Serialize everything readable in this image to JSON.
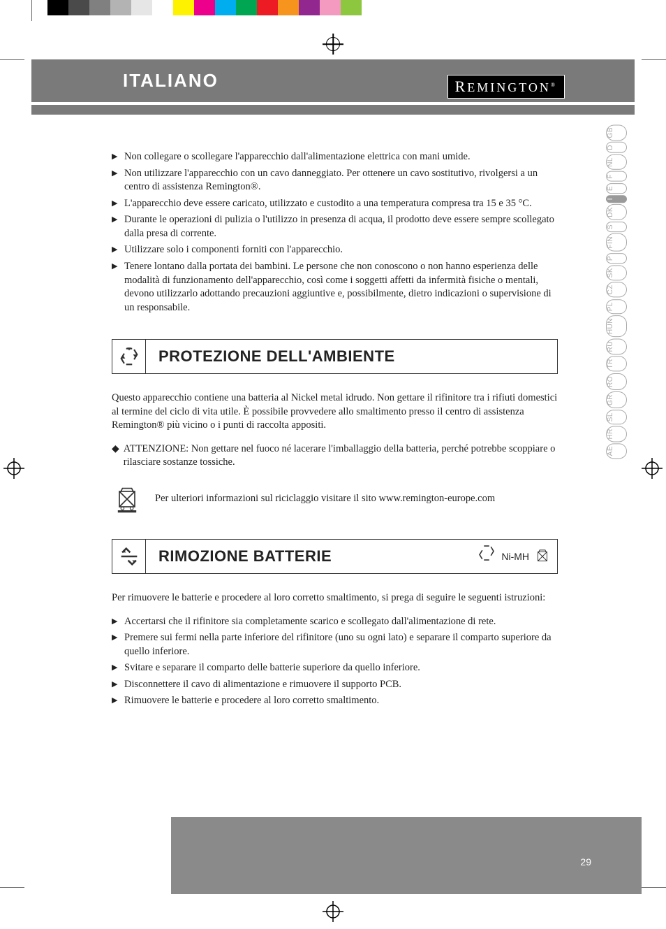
{
  "header": {
    "language_title": "ITALIANO",
    "brand_name": "REMINGTON"
  },
  "color_bar": [
    "#000000",
    "#4a4a4a",
    "#808080",
    "#b3b3b3",
    "#e6e6e6",
    "#ffffff",
    "#fff200",
    "#ec008c",
    "#00aeef",
    "#00a651",
    "#ed1c24",
    "#f7941d",
    "#92278f",
    "#f49ac1",
    "#8dc63f",
    "#ffffff"
  ],
  "safety_bullets": [
    "Non collegare o scollegare l'apparecchio dall'alimentazione elettrica con mani umide.",
    "Non utilizzare l'apparecchio con un cavo danneggiato. Per ottenere un cavo sostitutivo, rivolgersi a un centro di assistenza Remington®.",
    "L'apparecchio deve essere caricato, utilizzato e custodito a una temperatura compresa tra 15 e 35 °C.",
    "Durante le operazioni di pulizia o l'utilizzo in presenza di acqua, il prodotto deve essere sempre scollegato dalla presa di corrente.",
    "Utilizzare solo i componenti forniti con l'apparecchio.",
    "Tenere lontano dalla portata dei bambini. Le persone che non conoscono o non hanno esperienza delle modalità di funzionamento dell'apparecchio, così come i soggetti affetti da infermità fisiche o mentali, devono utilizzarlo adottando precauzioni aggiuntive e, possibilmente, dietro indicazioni o supervisione di un responsabile."
  ],
  "environment": {
    "title": "PROTEZIONE DELL'AMBIENTE",
    "paragraph": "Questo apparecchio contiene una batteria al Nickel metal idrudo. Non gettare il rifinitore tra i rifiuti domestici al termine del ciclo di vita utile. È possibile provvedere allo smaltimento presso il centro di assistenza Remington® più vicino o i punti di raccolta appositi.",
    "caution": "ATTENZIONE: Non gettare nel fuoco né lacerare l'imballaggio della batteria, perché potrebbe scoppiare o rilasciare sostanze tossiche.",
    "info_text": "Per ulteriori informazioni sul riciclaggio visitare il sito www.remington-europe.com"
  },
  "battery": {
    "title": "RIMOZIONE BATTERIE",
    "badge": "Ni-MH",
    "intro": "Per rimuovere le batterie e procedere al loro corretto smaltimento, si prega di seguire le seguenti istruzioni:",
    "steps": [
      "Accertarsi che il rifinitore sia completamente scarico e scollegato dall'alimentazione di rete.",
      "Premere sui fermi nella parte inferiore del rifinitore (uno su ogni lato) e separare il comparto superiore da quello inferiore.",
      "Svitare e separare il comparto delle batterie superiore da quello inferiore.",
      "Disconnettere il cavo di alimentazione e rimuovere il supporto PCB.",
      "Rimuovere le batterie e procedere al loro corretto smaltimento."
    ]
  },
  "language_tabs": [
    "GB",
    "D",
    "NL",
    "F",
    "E",
    "I",
    "DK",
    "S",
    "FIN",
    "P",
    "SK",
    "CZ",
    "PL",
    "HUN",
    "RU",
    "TR",
    "RO",
    "GR",
    "SL",
    "HR",
    "AE"
  ],
  "active_tab": "I",
  "page_number": "29",
  "colors": {
    "header_gray": "#7a7a7a",
    "footer_gray": "#8a8a8a",
    "tab_inactive": "#aaaaaa",
    "tab_active_bg": "#9a9a9a",
    "text": "#222222"
  }
}
